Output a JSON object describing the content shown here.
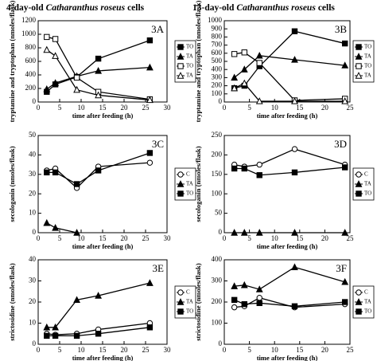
{
  "chart_data": [
    {
      "type": "line",
      "title": {
        "prefix": "4-day-old",
        "species": "Catharanthus roseus",
        "suffix": "cells"
      },
      "panel": "3A",
      "ylabel": "tryptamine and tryptophan (nmoles/flask)",
      "xlabel": "time after feeding (h)",
      "xlim": [
        0,
        30
      ],
      "xticks": [
        0,
        5,
        10,
        15,
        20,
        25,
        30
      ],
      "ylim": [
        0,
        1200
      ],
      "yticks": [
        0,
        200,
        400,
        600,
        800,
        1000,
        1200
      ],
      "x": [
        2,
        4,
        9,
        14,
        26
      ],
      "series": [
        {
          "name": "TO",
          "marker": "filled-square",
          "color": "#000",
          "values": [
            150,
            260,
            370,
            640,
            910
          ]
        },
        {
          "name": "TA",
          "marker": "filled-triangle",
          "color": "#000",
          "values": [
            190,
            280,
            380,
            460,
            510
          ]
        },
        {
          "name": "TO",
          "marker": "open-square",
          "color": "#000",
          "values": [
            960,
            930,
            360,
            150,
            40
          ]
        },
        {
          "name": "TA",
          "marker": "open-triangle",
          "color": "#000",
          "values": [
            770,
            680,
            180,
            100,
            30
          ]
        }
      ]
    },
    {
      "type": "line",
      "title": {
        "prefix": "13-day-old",
        "species": "Catharanthus roseus",
        "suffix": "cells"
      },
      "panel": "3B",
      "ylabel": "tryptamine and tryptophan (nmoles/flask)",
      "xlabel": "time after feeding (h)",
      "xlim": [
        0,
        25
      ],
      "xticks": [
        0,
        5,
        10,
        15,
        20,
        25
      ],
      "ylim": [
        0,
        1000
      ],
      "yticks": [
        0,
        100,
        200,
        300,
        400,
        500,
        600,
        700,
        800,
        900,
        1000
      ],
      "x": [
        2,
        4,
        7,
        14,
        24
      ],
      "series": [
        {
          "name": "TO",
          "marker": "filled-square",
          "color": "#000",
          "values": [
            170,
            200,
            440,
            870,
            720
          ]
        },
        {
          "name": "TA",
          "marker": "filled-triangle",
          "color": "#000",
          "values": [
            300,
            400,
            570,
            520,
            450
          ]
        },
        {
          "name": "TO",
          "marker": "open-square",
          "color": "#000",
          "values": [
            590,
            610,
            480,
            20,
            40
          ]
        },
        {
          "name": "TA",
          "marker": "open-triangle",
          "color": "#000",
          "values": [
            170,
            230,
            10,
            10,
            10
          ]
        }
      ]
    },
    {
      "type": "line",
      "panel": "3C",
      "ylabel": "secologanin (nmoles/flask)",
      "xlabel": "time after feeding (h)",
      "xlim": [
        0,
        30
      ],
      "xticks": [
        0,
        5,
        10,
        15,
        20,
        25,
        30
      ],
      "ylim": [
        0,
        50
      ],
      "yticks": [
        0,
        10,
        20,
        30,
        40,
        50
      ],
      "x": [
        2,
        4,
        9,
        14,
        26
      ],
      "series": [
        {
          "name": "C",
          "marker": "open-circle",
          "color": "#000",
          "values": [
            32,
            33,
            23,
            34,
            36
          ]
        },
        {
          "name": "TA",
          "marker": "filled-triangle",
          "color": "#000",
          "values": [
            5,
            2.5,
            0,
            null,
            null
          ]
        },
        {
          "name": "TO",
          "marker": "filled-square",
          "color": "#000",
          "values": [
            31,
            31,
            25,
            32,
            41
          ]
        }
      ]
    },
    {
      "type": "line",
      "panel": "3D",
      "ylabel": "secologanin (nmoles/flask)",
      "xlabel": "time after feeding (h)",
      "xlim": [
        0,
        25
      ],
      "xticks": [
        0,
        5,
        10,
        15,
        20,
        25
      ],
      "ylim": [
        0,
        250
      ],
      "yticks": [
        0,
        50,
        100,
        150,
        200,
        250
      ],
      "x": [
        2,
        4,
        7,
        14,
        24
      ],
      "series": [
        {
          "name": "C",
          "marker": "open-circle",
          "color": "#000",
          "values": [
            175,
            170,
            175,
            215,
            175
          ]
        },
        {
          "name": "TA",
          "marker": "filled-triangle",
          "color": "#000",
          "values": [
            0,
            0,
            0,
            0,
            0
          ]
        },
        {
          "name": "TO",
          "marker": "filled-square",
          "color": "#000",
          "values": [
            165,
            165,
            148,
            155,
            168
          ]
        }
      ]
    },
    {
      "type": "line",
      "panel": "3E",
      "ylabel": "strictosidine (nmoles/flask)",
      "xlabel": "time after feeding (h)",
      "xlim": [
        0,
        30
      ],
      "xticks": [
        0,
        5,
        10,
        15,
        20,
        25,
        30
      ],
      "ylim": [
        0,
        40
      ],
      "yticks": [
        0,
        10,
        20,
        30,
        40
      ],
      "x": [
        2,
        4,
        9,
        14,
        26
      ],
      "series": [
        {
          "name": "C",
          "marker": "open-circle",
          "color": "#000",
          "values": [
            5,
            4.5,
            5,
            7,
            10
          ]
        },
        {
          "name": "TA",
          "marker": "filled-triangle",
          "color": "#000",
          "values": [
            8,
            8,
            21,
            23,
            29
          ]
        },
        {
          "name": "TO",
          "marker": "filled-square",
          "color": "#000",
          "values": [
            4,
            4,
            4,
            5,
            8
          ]
        }
      ]
    },
    {
      "type": "line",
      "panel": "3F",
      "ylabel": "strictosidine (nmoles/flask)",
      "xlabel": "time after feeding (h)",
      "xlim": [
        0,
        25
      ],
      "xticks": [
        0,
        5,
        10,
        15,
        20,
        25
      ],
      "ylim": [
        0,
        400
      ],
      "yticks": [
        0,
        100,
        200,
        300,
        400
      ],
      "x": [
        2,
        4,
        7,
        14,
        24
      ],
      "series": [
        {
          "name": "C",
          "marker": "open-circle",
          "color": "#000",
          "values": [
            175,
            180,
            220,
            175,
            190
          ]
        },
        {
          "name": "TA",
          "marker": "filled-triangle",
          "color": "#000",
          "values": [
            275,
            280,
            260,
            365,
            295
          ]
        },
        {
          "name": "TO",
          "marker": "filled-square",
          "color": "#000",
          "values": [
            210,
            190,
            195,
            180,
            200
          ]
        }
      ]
    }
  ]
}
